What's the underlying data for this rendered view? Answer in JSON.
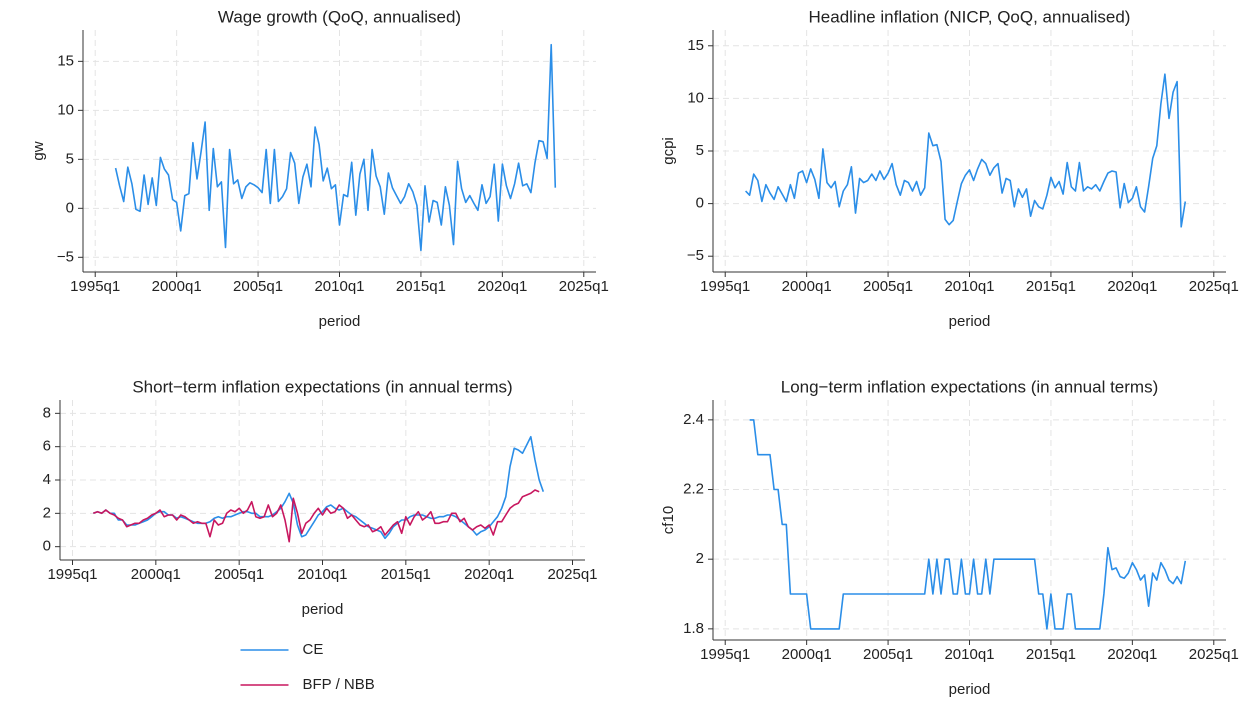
{
  "chart_data": [
    {
      "type": "line",
      "title": "Wage growth (QoQ, annualised)",
      "x_label": "period",
      "y_label": "gw",
      "x": [
        145,
        146,
        147,
        148,
        149,
        150,
        151,
        152,
        153,
        154,
        155,
        156,
        157,
        158,
        159,
        160,
        161,
        162,
        163,
        164,
        165,
        166,
        167,
        168,
        169,
        170,
        171,
        172,
        173,
        174,
        175,
        176,
        177,
        178,
        179,
        180,
        181,
        182,
        183,
        184,
        185,
        186,
        187,
        188,
        189,
        190,
        191,
        192,
        193,
        194,
        195,
        196,
        197,
        198,
        199,
        200,
        201,
        202,
        203,
        204,
        205,
        206,
        207,
        208,
        209,
        210,
        211,
        212,
        213,
        214,
        215,
        216,
        217,
        218,
        219,
        220,
        221,
        222,
        223,
        224,
        225,
        226,
        227,
        228,
        229,
        230,
        231,
        232,
        233,
        234,
        235,
        236,
        237,
        238,
        239,
        240,
        241,
        242,
        243,
        244,
        245,
        246,
        247,
        248,
        249,
        250,
        251,
        252,
        253
      ],
      "series": [
        {
          "name": "gw",
          "color": "#2b8ee8",
          "values": [
            4.1,
            2.3,
            0.7,
            4.2,
            2.5,
            -0.1,
            -0.3,
            3.4,
            0.4,
            3.1,
            0.3,
            5.2,
            4.0,
            3.4,
            0.9,
            0.6,
            -2.3,
            1.3,
            1.5,
            6.7,
            3.0,
            5.8,
            8.8,
            -0.2,
            6.1,
            2.2,
            2.7,
            -4.0,
            6.0,
            2.5,
            2.9,
            1.0,
            2.2,
            2.6,
            2.4,
            2.1,
            1.6,
            6.0,
            0.5,
            6.0,
            0.7,
            1.2,
            2.0,
            5.7,
            4.6,
            0.5,
            3.2,
            4.5,
            2.2,
            8.3,
            6.5,
            2.8,
            4.1,
            2.0,
            2.4,
            -1.7,
            1.4,
            1.2,
            4.7,
            -0.7,
            3.5,
            5.0,
            -0.2,
            6.0,
            3.3,
            2.2,
            -0.6,
            3.6,
            2.1,
            1.3,
            0.5,
            1.2,
            2.5,
            1.7,
            0.3,
            -4.3,
            2.3,
            -1.4,
            0.8,
            0.6,
            -1.7,
            2.2,
            0.3,
            -3.7,
            4.8,
            2.0,
            0.6,
            1.3,
            0.5,
            -0.2,
            2.4,
            0.5,
            1.2,
            4.5,
            -1.3,
            4.5,
            2.3,
            1.0,
            2.5,
            4.6,
            2.3,
            2.5,
            1.6,
            4.6,
            6.9,
            6.8,
            5.1,
            16.7,
            2.1
          ]
        }
      ],
      "xlim": [
        137,
        263
      ],
      "xticks": [
        {
          "value": 140,
          "label": "1995q1"
        },
        {
          "value": 160,
          "label": "2000q1"
        },
        {
          "value": 180,
          "label": "2005q1"
        },
        {
          "value": 200,
          "label": "2010q1"
        },
        {
          "value": 220,
          "label": "2015q1"
        },
        {
          "value": 240,
          "label": "2020q1"
        },
        {
          "value": 260,
          "label": "2025q1"
        }
      ],
      "ylim": [
        -6.5,
        18.2
      ],
      "yticks": [
        {
          "value": -5,
          "label": "−5"
        },
        0,
        5,
        10,
        15
      ],
      "grid": true
    },
    {
      "type": "line",
      "title": "Headline inflation (NICP, QoQ, annualised)",
      "x_label": "period",
      "y_label": "gcpi",
      "x": [
        145,
        146,
        147,
        148,
        149,
        150,
        151,
        152,
        153,
        154,
        155,
        156,
        157,
        158,
        159,
        160,
        161,
        162,
        163,
        164,
        165,
        166,
        167,
        168,
        169,
        170,
        171,
        172,
        173,
        174,
        175,
        176,
        177,
        178,
        179,
        180,
        181,
        182,
        183,
        184,
        185,
        186,
        187,
        188,
        189,
        190,
        191,
        192,
        193,
        194,
        195,
        196,
        197,
        198,
        199,
        200,
        201,
        202,
        203,
        204,
        205,
        206,
        207,
        208,
        209,
        210,
        211,
        212,
        213,
        214,
        215,
        216,
        217,
        218,
        219,
        220,
        221,
        222,
        223,
        224,
        225,
        226,
        227,
        228,
        229,
        230,
        231,
        232,
        233,
        234,
        235,
        236,
        237,
        238,
        239,
        240,
        241,
        242,
        243,
        244,
        245,
        246,
        247,
        248,
        249,
        250,
        251,
        252,
        253
      ],
      "series": [
        {
          "name": "gcpi",
          "color": "#2b8ee8",
          "values": [
            1.2,
            0.8,
            2.8,
            2.2,
            0.2,
            1.8,
            1.0,
            0.4,
            1.6,
            0.9,
            0.2,
            1.8,
            0.5,
            2.9,
            3.1,
            2.0,
            3.3,
            2.3,
            0.5,
            5.2,
            2.0,
            1.5,
            2.1,
            -0.3,
            1.2,
            1.8,
            3.5,
            -0.9,
            2.4,
            2.0,
            2.2,
            2.8,
            2.2,
            3.1,
            2.3,
            2.9,
            3.8,
            1.8,
            0.8,
            2.2,
            2.0,
            1.2,
            2.1,
            0.8,
            1.5,
            6.7,
            5.5,
            5.6,
            4.0,
            -1.5,
            -2.0,
            -1.6,
            0.2,
            1.9,
            2.7,
            3.2,
            2.2,
            3.3,
            4.2,
            3.8,
            2.7,
            3.4,
            3.8,
            1.0,
            2.4,
            2.2,
            -0.3,
            1.4,
            0.6,
            1.4,
            -1.2,
            0.3,
            -0.3,
            -0.5,
            0.8,
            2.5,
            1.5,
            2.1,
            0.9,
            3.9,
            1.6,
            1.2,
            3.9,
            1.2,
            1.6,
            1.4,
            1.8,
            1.2,
            2.1,
            2.9,
            3.1,
            3.0,
            -0.4,
            1.9,
            0.1,
            0.5,
            1.6,
            -0.3,
            -0.8,
            1.6,
            4.3,
            5.5,
            9.5,
            12.3,
            8.1,
            10.6,
            11.6,
            -2.2,
            0.2
          ]
        }
      ],
      "xlim": [
        137,
        263
      ],
      "xticks": [
        {
          "value": 140,
          "label": "1995q1"
        },
        {
          "value": 160,
          "label": "2000q1"
        },
        {
          "value": 180,
          "label": "2005q1"
        },
        {
          "value": 200,
          "label": "2010q1"
        },
        {
          "value": 220,
          "label": "2015q1"
        },
        {
          "value": 240,
          "label": "2020q1"
        },
        {
          "value": 260,
          "label": "2025q1"
        }
      ],
      "ylim": [
        -6.5,
        16.5
      ],
      "yticks": [
        {
          "value": -5,
          "label": "−5"
        },
        0,
        5,
        10,
        15
      ],
      "grid": true
    },
    {
      "type": "line",
      "title": "Short−term inflation expectations (in annual terms)",
      "x_label": "period",
      "x": [
        145,
        146,
        147,
        148,
        149,
        150,
        151,
        152,
        153,
        154,
        155,
        156,
        157,
        158,
        159,
        160,
        161,
        162,
        163,
        164,
        165,
        166,
        167,
        168,
        169,
        170,
        171,
        172,
        173,
        174,
        175,
        176,
        177,
        178,
        179,
        180,
        181,
        182,
        183,
        184,
        185,
        186,
        187,
        188,
        189,
        190,
        191,
        192,
        193,
        194,
        195,
        196,
        197,
        198,
        199,
        200,
        201,
        202,
        203,
        204,
        205,
        206,
        207,
        208,
        209,
        210,
        211,
        212,
        213,
        214,
        215,
        216,
        217,
        218,
        219,
        220,
        221,
        222,
        223,
        224,
        225,
        226,
        227,
        228,
        229,
        230,
        231,
        232,
        233,
        234,
        235,
        236,
        237,
        238,
        239,
        240,
        241,
        242,
        243,
        244,
        245,
        246,
        247,
        248,
        249,
        250,
        251,
        252,
        253
      ],
      "series": [
        {
          "name": "CE",
          "color": "#2b8ee8",
          "values": [
            2.0,
            2.1,
            2.0,
            2.2,
            2.0,
            2.0,
            1.6,
            1.6,
            1.3,
            1.3,
            1.3,
            1.4,
            1.5,
            1.6,
            1.8,
            2.0,
            2.1,
            2.1,
            1.9,
            1.9,
            1.7,
            1.8,
            1.7,
            1.6,
            1.5,
            1.4,
            1.4,
            1.4,
            1.5,
            1.7,
            1.8,
            1.7,
            1.8,
            1.8,
            1.9,
            2.0,
            2.1,
            2.1,
            2.0,
            2.0,
            1.8,
            1.8,
            1.8,
            1.9,
            2.1,
            2.3,
            2.7,
            3.2,
            2.6,
            1.3,
            0.6,
            0.7,
            1.1,
            1.5,
            1.9,
            2.1,
            2.4,
            2.5,
            2.3,
            2.2,
            2.3,
            2.1,
            1.9,
            1.8,
            1.6,
            1.4,
            1.2,
            1.1,
            1.0,
            0.9,
            0.5,
            0.8,
            1.2,
            1.4,
            1.6,
            1.6,
            1.8,
            1.9,
            1.9,
            1.9,
            1.8,
            1.7,
            1.7,
            1.8,
            1.8,
            1.9,
            1.9,
            1.8,
            1.6,
            1.4,
            1.2,
            1.0,
            0.7,
            0.9,
            1.0,
            1.2,
            1.5,
            1.8,
            2.3,
            3.0,
            4.8,
            5.9,
            5.8,
            5.6,
            6.1,
            6.6,
            5.2,
            4.0,
            3.3
          ]
        },
        {
          "name": "BFP / NBB",
          "color": "#c8175f",
          "values": [
            2.0,
            2.1,
            2.0,
            2.2,
            2.0,
            1.9,
            1.7,
            1.6,
            1.2,
            1.3,
            1.4,
            1.4,
            1.6,
            1.7,
            1.9,
            2.0,
            2.2,
            1.8,
            1.9,
            1.9,
            1.6,
            1.9,
            1.8,
            1.6,
            1.4,
            1.5,
            1.4,
            1.4,
            0.6,
            1.6,
            1.3,
            1.4,
            2.0,
            2.2,
            2.1,
            2.3,
            2.0,
            2.2,
            2.7,
            1.8,
            1.7,
            1.8,
            2.5,
            1.8,
            2.0,
            2.5,
            1.6,
            0.3,
            2.9,
            2.0,
            0.8,
            1.4,
            1.6,
            2.0,
            2.3,
            1.9,
            2.3,
            2.0,
            2.1,
            2.5,
            2.3,
            1.7,
            1.9,
            1.6,
            1.3,
            1.2,
            1.3,
            0.9,
            1.0,
            1.2,
            0.7,
            1.0,
            1.3,
            1.5,
            0.8,
            1.8,
            1.3,
            1.8,
            2.1,
            1.6,
            1.8,
            2.1,
            1.4,
            1.4,
            1.5,
            1.5,
            2.0,
            2.0,
            1.5,
            1.7,
            1.2,
            1.0,
            1.2,
            1.3,
            1.1,
            1.3,
            0.7,
            1.5,
            1.5,
            1.9,
            2.3,
            2.5,
            2.6,
            3.0,
            3.1,
            3.2,
            3.4,
            3.3,
            null
          ]
        }
      ],
      "xlim": [
        137,
        263
      ],
      "xticks": [
        {
          "value": 140,
          "label": "1995q1"
        },
        {
          "value": 160,
          "label": "2000q1"
        },
        {
          "value": 180,
          "label": "2005q1"
        },
        {
          "value": 200,
          "label": "2010q1"
        },
        {
          "value": 220,
          "label": "2015q1"
        },
        {
          "value": 240,
          "label": "2020q1"
        },
        {
          "value": 260,
          "label": "2025q1"
        }
      ],
      "ylim": [
        -0.8,
        8.8
      ],
      "yticks": [
        0,
        2,
        4,
        6,
        8
      ],
      "grid": true,
      "legend": "bottom"
    },
    {
      "type": "line",
      "title": "Long−term inflation expectations (in annual terms)",
      "x_label": "period",
      "y_label": "cf10",
      "x": [
        145,
        146,
        147,
        148,
        149,
        150,
        151,
        152,
        153,
        154,
        155,
        156,
        157,
        158,
        159,
        160,
        161,
        162,
        163,
        164,
        165,
        166,
        167,
        168,
        169,
        170,
        171,
        172,
        173,
        174,
        175,
        176,
        177,
        178,
        179,
        180,
        181,
        182,
        183,
        184,
        185,
        186,
        187,
        188,
        189,
        190,
        191,
        192,
        193,
        194,
        195,
        196,
        197,
        198,
        199,
        200,
        201,
        202,
        203,
        204,
        205,
        206,
        207,
        208,
        209,
        210,
        211,
        212,
        213,
        214,
        215,
        216,
        217,
        218,
        219,
        220,
        221,
        222,
        223,
        224,
        225,
        226,
        227,
        228,
        229,
        230,
        231,
        232,
        233,
        234,
        235,
        236,
        237,
        238,
        239,
        240,
        241,
        242,
        243,
        244,
        245,
        246,
        247,
        248,
        249,
        250,
        251,
        252,
        253
      ],
      "series": [
        {
          "name": "cf10",
          "color": "#2b8ee8",
          "values": [
            null,
            2.4,
            2.4,
            2.3,
            2.3,
            2.3,
            2.3,
            2.2,
            2.2,
            2.1,
            2.1,
            1.9,
            1.9,
            1.9,
            1.9,
            1.9,
            1.8,
            1.8,
            1.8,
            1.8,
            1.8,
            1.8,
            1.8,
            1.8,
            1.9,
            1.9,
            1.9,
            1.9,
            1.9,
            1.9,
            1.9,
            1.9,
            1.9,
            1.9,
            1.9,
            1.9,
            1.9,
            1.9,
            1.9,
            1.9,
            1.9,
            1.9,
            1.9,
            1.9,
            1.9,
            2.0,
            1.9,
            2.0,
            1.9,
            2.0,
            2.0,
            1.9,
            1.9,
            2.0,
            1.9,
            1.9,
            2.0,
            1.9,
            1.9,
            2.0,
            1.9,
            2.0,
            2.0,
            2.0,
            2.0,
            2.0,
            2.0,
            2.0,
            2.0,
            2.0,
            2.0,
            2.0,
            1.9,
            1.9,
            1.8,
            1.9,
            1.8,
            1.8,
            1.8,
            1.9,
            1.9,
            1.8,
            1.8,
            1.8,
            1.8,
            1.8,
            1.8,
            1.8,
            1.9,
            2.033,
            1.97,
            1.975,
            1.95,
            1.945,
            1.96,
            1.99,
            1.97,
            1.94,
            1.955,
            1.865,
            1.96,
            1.94,
            1.99,
            1.97,
            1.94,
            1.93,
            1.95,
            1.93,
            1.995
          ]
        }
      ],
      "xlim": [
        137,
        263
      ],
      "xticks": [
        {
          "value": 140,
          "label": "1995q1"
        },
        {
          "value": 160,
          "label": "2000q1"
        },
        {
          "value": 180,
          "label": "2005q1"
        },
        {
          "value": 200,
          "label": "2010q1"
        },
        {
          "value": 220,
          "label": "2015q1"
        },
        {
          "value": 240,
          "label": "2020q1"
        },
        {
          "value": 260,
          "label": "2025q1"
        }
      ],
      "ylim": [
        1.768,
        2.457
      ],
      "yticks": [
        1.8,
        2,
        2.2,
        2.4
      ],
      "grid": true
    }
  ]
}
